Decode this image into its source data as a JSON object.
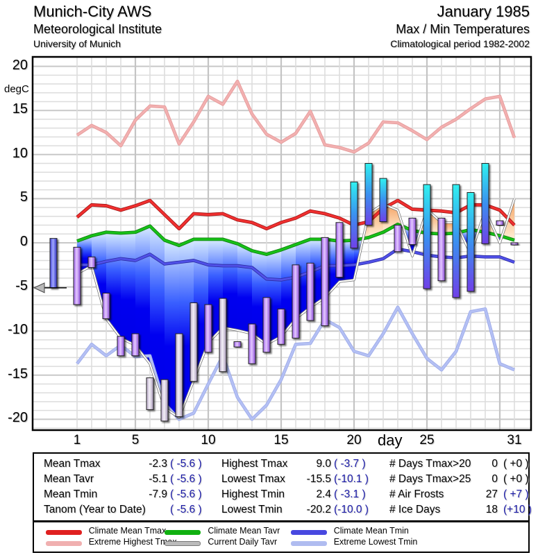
{
  "header": {
    "station": "Munich-City AWS",
    "institute": "Meteorological Institute",
    "university": "University of Munich",
    "month": "January 1985",
    "subtitle": "Max / Min Temperatures",
    "period": "Climatological period 1982-2002"
  },
  "chart_data": {
    "type": "bar",
    "title": "Max / Min Temperatures",
    "xlabel": "day",
    "ylabel": "degC",
    "xlim": [
      -2,
      32
    ],
    "ylim": [
      -21.5,
      22
    ],
    "yticks": [
      "20",
      "15",
      "10",
      "5",
      "0",
      "-5",
      "-10",
      "-15",
      "-20"
    ],
    "ytick_values": [
      20,
      15,
      10,
      5,
      0,
      -5,
      -10,
      -15,
      -20
    ],
    "xticks": [
      "1",
      "5",
      "10",
      "15",
      "20",
      "25",
      "31"
    ],
    "xtick_values": [
      1,
      5,
      10,
      15,
      20,
      25,
      31
    ],
    "grid": true,
    "days": [
      1,
      2,
      3,
      4,
      5,
      6,
      7,
      8,
      9,
      10,
      11,
      12,
      13,
      14,
      15,
      16,
      17,
      18,
      19,
      20,
      21,
      22,
      23,
      24,
      25,
      26,
      27,
      28,
      29,
      30,
      31
    ],
    "series": [
      {
        "name": "Daily Tmax",
        "values": [
          -0.5,
          -1.6,
          -5.7,
          -10.6,
          -10.3,
          -15.3,
          -15.5,
          -10.3,
          -6.8,
          -7.0,
          -6.3,
          -11.8,
          -9.2,
          -6.2,
          -7.5,
          -2.5,
          -2.3,
          0.6,
          2.3,
          6.9,
          9.0,
          7.3,
          -1.0,
          2.8,
          6.6,
          2.8,
          6.6,
          5.7,
          9.0,
          2.5,
          0.0
        ],
        "unit": "degC"
      },
      {
        "name": "Daily Tmin",
        "values": [
          -7.0,
          -2.8,
          -8.6,
          -12.8,
          -12.8,
          -18.9,
          -20.2,
          -19.7,
          -15.7,
          -12.4,
          -14.6,
          -11.2,
          -13.7,
          -12.4,
          -11.5,
          -10.8,
          -8.8,
          -9.4,
          -3.9,
          -0.6,
          2.0,
          2.4,
          2.0,
          -0.2,
          -5.2,
          -4.3,
          -6.2,
          -5.5,
          -0.1,
          2.0,
          0.0
        ],
        "unit": "degC"
      },
      {
        "name": "Climate Mean Tmax",
        "values": [
          2.9,
          4.3,
          4.2,
          3.7,
          4.2,
          4.8,
          3.2,
          1.6,
          3.3,
          3.2,
          3.3,
          2.6,
          2.3,
          1.6,
          2.3,
          2.8,
          3.6,
          3.3,
          2.8,
          2.0,
          2.4,
          3.9,
          4.8,
          3.8,
          3.7,
          3.6,
          3.4,
          4.3,
          4.3,
          3.7,
          2.0
        ],
        "color": "#e02020"
      },
      {
        "name": "Climate Mean Tavr",
        "values": [
          0.2,
          0.8,
          1.2,
          1.1,
          1.2,
          1.9,
          0.3,
          -0.3,
          0.4,
          0.4,
          0.4,
          -0.1,
          -0.9,
          -1.3,
          -0.8,
          -0.2,
          0.4,
          0.4,
          0.2,
          0.3,
          0.6,
          1.2,
          2.1,
          1.4,
          1.1,
          1.0,
          1.1,
          1.5,
          1.2,
          0.8,
          0.3
        ],
        "color": "#10b010"
      },
      {
        "name": "Climate Mean Tmin",
        "values": [
          -2.5,
          -2.5,
          -2.1,
          -1.8,
          -2.0,
          -1.3,
          -2.4,
          -2.2,
          -2.0,
          -2.5,
          -2.6,
          -2.6,
          -2.8,
          -4.1,
          -4.2,
          -3.9,
          -3.3,
          -2.6,
          -2.6,
          -2.5,
          -2.2,
          -1.8,
          -0.7,
          -1.0,
          -1.4,
          -1.6,
          -1.7,
          -1.5,
          -1.6,
          -1.6,
          -2.2
        ],
        "color": "#4040e0"
      },
      {
        "name": "Current Daily Tavr",
        "values": [
          -3.5,
          -2.6,
          -8.6,
          -10.8,
          -11.6,
          -13.7,
          -18.7,
          -19.8,
          -15.6,
          -11.3,
          -9.6,
          -9.9,
          -10.3,
          -11.5,
          -10.6,
          -8.6,
          -7.3,
          -6.2,
          -4.4,
          -4.2,
          3.3,
          4.4,
          3.7,
          -1.5,
          3.8,
          2.3,
          2.3,
          -1.3,
          3.7,
          0.0,
          5.0
        ],
        "color": "#999999"
      },
      {
        "name": "Extreme Highest Tmax",
        "values": [
          12.2,
          13.3,
          12.5,
          11.0,
          13.9,
          15.5,
          15.4,
          11.2,
          13.7,
          16.6,
          15.7,
          18.3,
          14.6,
          12.3,
          11.4,
          12.4,
          14.9,
          11.1,
          10.8,
          10.3,
          11.3,
          13.7,
          13.6,
          12.7,
          11.7,
          13.1,
          14.0,
          15.2,
          16.3,
          16.6,
          11.9
        ],
        "color": "#f0a8a8"
      },
      {
        "name": "Extreme Lowest Tmin",
        "values": [
          -13.7,
          -11.5,
          -12.8,
          -11.6,
          -12.9,
          -12.8,
          -18.2,
          -20.0,
          -19.3,
          -16.0,
          -12.8,
          -17.5,
          -20.0,
          -18.4,
          -15.5,
          -11.5,
          -11.4,
          -8.7,
          -9.6,
          -12.3,
          -12.8,
          -10.3,
          -7.3,
          -10.3,
          -13.1,
          -14.4,
          -12.3,
          -7.8,
          -7.5,
          -13.7,
          -14.4
        ],
        "color": "#a8b4f0"
      }
    ],
    "previous_month_bar": {
      "max": 0.5,
      "min": -5.1
    },
    "ytd_marker": -5.1
  },
  "stats": {
    "col1": [
      {
        "label": "Mean Tmax",
        "value": "-2.3",
        "anom": "( -5.6 )"
      },
      {
        "label": "Mean Tavr",
        "value": "-5.1",
        "anom": "( -5.6 )"
      },
      {
        "label": "Mean Tmin",
        "value": "-7.9",
        "anom": "( -5.6 )"
      },
      {
        "label": "Tanom (Year to Date)",
        "value": "",
        "anom": "( -5.6 )"
      }
    ],
    "col2": [
      {
        "label": "Highest Tmax",
        "value": "9.0",
        "anom": "( -3.7 )"
      },
      {
        "label": "Lowest Tmax",
        "value": "-15.5",
        "anom": "(-10.1 )"
      },
      {
        "label": "Highest Tmin",
        "value": "2.4",
        "anom": "( -3.1 )"
      },
      {
        "label": "Lowest Tmin",
        "value": "-20.2",
        "anom": "(-10.0 )"
      }
    ],
    "col3": [
      {
        "label": "# Days Tmax>20",
        "value": "0",
        "anom": "( +0 )"
      },
      {
        "label": "# Days Tmax>25",
        "value": "0",
        "anom": "( +0 )"
      },
      {
        "label": "# Air Frosts",
        "value": "27",
        "anom": "( +7 )"
      },
      {
        "label": "# Ice Days",
        "value": "18",
        "anom": "(+10 )"
      }
    ]
  },
  "legend": [
    {
      "label": "Climate Mean Tmax",
      "color": "#e02020"
    },
    {
      "label": "Extreme Highest Tmax",
      "color": "#f0b0b0"
    },
    {
      "label": "Climate Mean Tavr",
      "color": "#10b010"
    },
    {
      "label": "Current Daily Tavr",
      "color": "#bbbbbb"
    },
    {
      "label": "Climate Mean Tmin",
      "color": "#4848e0"
    },
    {
      "label": "Extreme Lowest Tmin",
      "color": "#b0bcf0"
    }
  ]
}
